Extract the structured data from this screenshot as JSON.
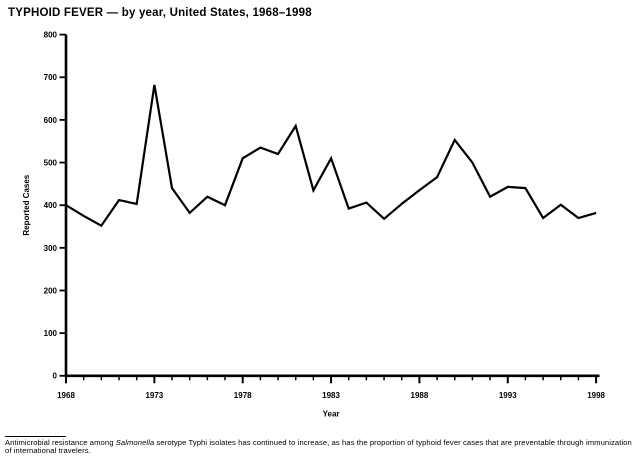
{
  "page": {
    "title": "TYPHOID FEVER — by year, United States, 1968–1998",
    "background": "#ffffff",
    "ink": "#000000"
  },
  "chart_data": {
    "type": "line",
    "title": "TYPHOID FEVER — by year, United States, 1968–1998",
    "xlabel": "Year",
    "ylabel": "Reported Cases",
    "x": [
      1968,
      1969,
      1970,
      1971,
      1972,
      1973,
      1974,
      1975,
      1976,
      1977,
      1978,
      1979,
      1980,
      1981,
      1982,
      1983,
      1984,
      1985,
      1986,
      1987,
      1988,
      1989,
      1990,
      1991,
      1992,
      1993,
      1994,
      1995,
      1996,
      1997,
      1998
    ],
    "values": [
      400,
      375,
      352,
      412,
      403,
      682,
      440,
      382,
      420,
      400,
      510,
      535,
      520,
      586,
      435,
      510,
      392,
      406,
      368,
      403,
      435,
      466,
      553,
      500,
      420,
      443,
      440,
      370,
      401,
      370,
      382
    ],
    "ylim": [
      0,
      800
    ],
    "yticks": [
      0,
      100,
      200,
      300,
      400,
      500,
      600,
      700,
      800
    ],
    "xticks": [
      1968,
      1973,
      1978,
      1983,
      1988,
      1993,
      1998
    ],
    "grid": false,
    "legend": false,
    "line_color": "#000000"
  },
  "footnote": {
    "part1": "Antimicrobial resistance among ",
    "italic": "Salmonella",
    "part2": " serotype Typhi isolates has continued to increase, as has the proportion of typhoid fever cases that are preventable through immunization of international travelers."
  }
}
